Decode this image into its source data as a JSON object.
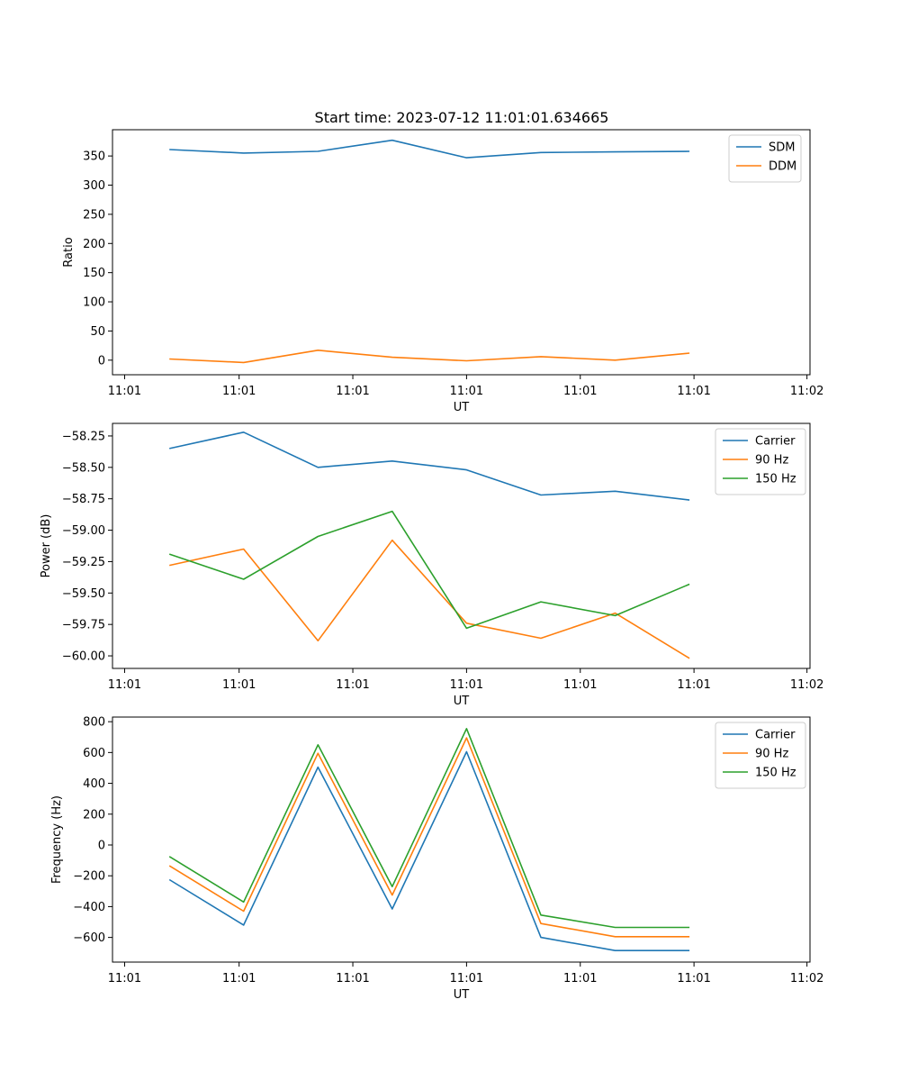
{
  "figure": {
    "title": "Start time: 2023-07-12 11:01:01.634665"
  },
  "chart_data": [
    {
      "type": "line",
      "title": "Start time: 2023-07-12 11:01:01.634665",
      "xlabel": "UT",
      "ylabel": "Ratio",
      "xlim": [
        0,
        9.2
      ],
      "ylim": [
        -25,
        395
      ],
      "x": [
        0.75,
        1.73,
        2.71,
        3.69,
        4.67,
        5.65,
        6.63,
        7.61
      ],
      "x_ticks": [
        0.16,
        1.67,
        3.17,
        4.67,
        6.17,
        7.67,
        9.16
      ],
      "x_tick_labels": [
        "11:01",
        "11:01",
        "11:01",
        "11:01",
        "11:01",
        "11:01",
        "11:02"
      ],
      "y_ticks": [
        0,
        50,
        100,
        150,
        200,
        250,
        300,
        350
      ],
      "y_tick_labels": [
        "0",
        "50",
        "100",
        "150",
        "200",
        "250",
        "300",
        "350"
      ],
      "legend_position": "top-right",
      "series": [
        {
          "name": "SDM",
          "color": "#1f77b4",
          "values": [
            361,
            355,
            358,
            377,
            347,
            356,
            357,
            358
          ]
        },
        {
          "name": "DDM",
          "color": "#ff7f0e",
          "values": [
            2,
            -4,
            17,
            5,
            -1,
            6,
            0,
            12
          ]
        }
      ]
    },
    {
      "type": "line",
      "xlabel": "UT",
      "ylabel": "Power (dB)",
      "xlim": [
        0,
        9.2
      ],
      "ylim": [
        -60.1,
        -58.15
      ],
      "x": [
        0.75,
        1.73,
        2.71,
        3.69,
        4.67,
        5.65,
        6.63,
        7.61
      ],
      "x_ticks": [
        0.16,
        1.67,
        3.17,
        4.67,
        6.17,
        7.67,
        9.16
      ],
      "x_tick_labels": [
        "11:01",
        "11:01",
        "11:01",
        "11:01",
        "11:01",
        "11:01",
        "11:02"
      ],
      "y_ticks": [
        -58.25,
        -58.5,
        -58.75,
        -59.0,
        -59.25,
        -59.5,
        -59.75,
        -60.0
      ],
      "y_tick_labels": [
        "−58.25",
        "−58.50",
        "−58.75",
        "−59.00",
        "−59.25",
        "−59.50",
        "−59.75",
        "−60.00"
      ],
      "legend_position": "top-right",
      "series": [
        {
          "name": "Carrier",
          "color": "#1f77b4",
          "values": [
            -58.35,
            -58.22,
            -58.5,
            -58.45,
            -58.52,
            -58.72,
            -58.69,
            -58.76
          ]
        },
        {
          "name": "90 Hz",
          "color": "#ff7f0e",
          "values": [
            -59.28,
            -59.15,
            -59.88,
            -59.08,
            -59.74,
            -59.86,
            -59.66,
            -60.02
          ]
        },
        {
          "name": "150 Hz",
          "color": "#2ca02c",
          "values": [
            -59.19,
            -59.39,
            -59.05,
            -58.85,
            -59.78,
            -59.57,
            -59.68,
            -59.43
          ]
        }
      ]
    },
    {
      "type": "line",
      "xlabel": "UT",
      "ylabel": "Frequency (Hz)",
      "xlim": [
        0,
        9.2
      ],
      "ylim": [
        -760,
        830
      ],
      "x": [
        0.75,
        1.73,
        2.71,
        3.69,
        4.67,
        5.65,
        6.63,
        7.61
      ],
      "x_ticks": [
        0.16,
        1.67,
        3.17,
        4.67,
        6.17,
        7.67,
        9.16
      ],
      "x_tick_labels": [
        "11:01",
        "11:01",
        "11:01",
        "11:01",
        "11:01",
        "11:01",
        "11:02"
      ],
      "y_ticks": [
        -600,
        -400,
        -200,
        0,
        200,
        400,
        600,
        800
      ],
      "y_tick_labels": [
        "−600",
        "−400",
        "−200",
        "0",
        "200",
        "400",
        "600",
        "800"
      ],
      "legend_position": "top-right",
      "series": [
        {
          "name": "Carrier",
          "color": "#1f77b4",
          "values": [
            -225,
            -520,
            505,
            -415,
            605,
            -600,
            -685,
            -685
          ]
        },
        {
          "name": "90 Hz",
          "color": "#ff7f0e",
          "values": [
            -135,
            -430,
            595,
            -325,
            695,
            -510,
            -595,
            -595
          ]
        },
        {
          "name": "150 Hz",
          "color": "#2ca02c",
          "values": [
            -75,
            -370,
            650,
            -270,
            755,
            -455,
            -535,
            -535
          ]
        }
      ]
    }
  ]
}
